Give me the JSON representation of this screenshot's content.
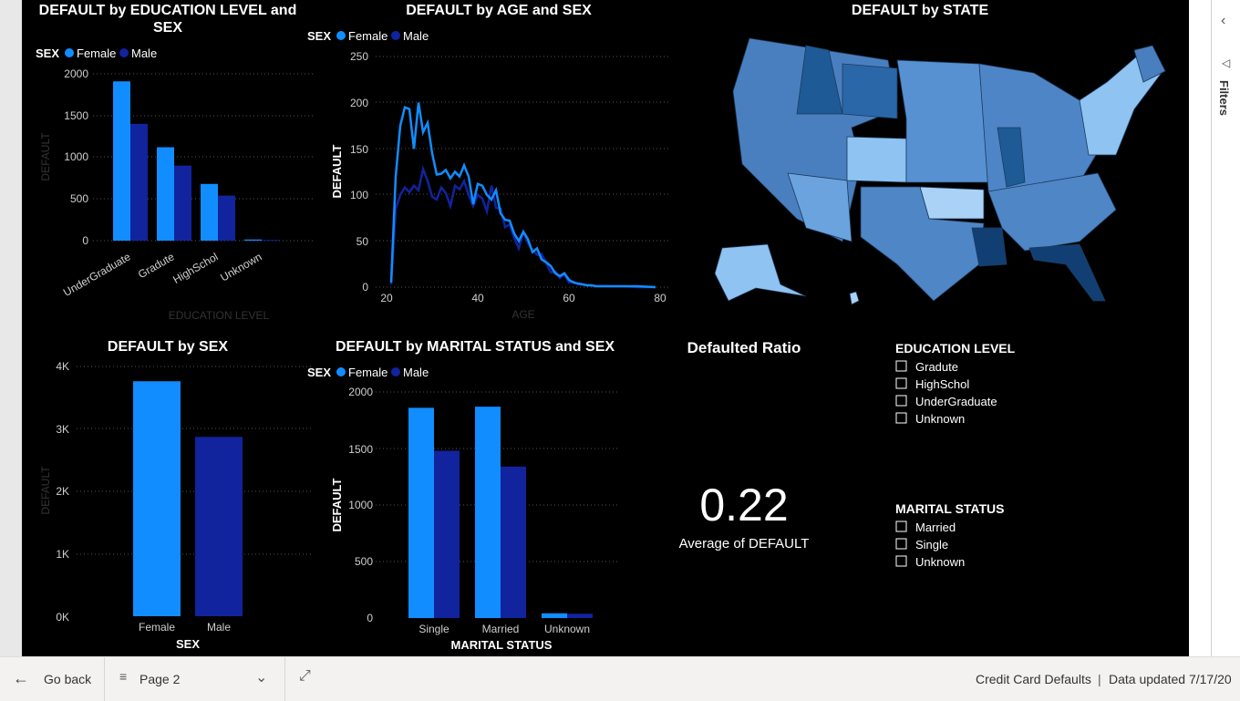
{
  "colors": {
    "female": "#118DFF",
    "male": "#12239E",
    "background": "#000000"
  },
  "visuals": {
    "edu": {
      "title_line1": "DEFAULT by EDUCATION LEVEL and",
      "title_line2": "SEX",
      "legend_title": "SEX",
      "legend_female": "Female",
      "legend_male": "Male",
      "xlabel": "EDUCATION LEVEL",
      "ylabel": "DEFAULT",
      "yticks": [
        "2000",
        "1500",
        "1000",
        "500",
        "0"
      ]
    },
    "age": {
      "title": "DEFAULT by AGE and SEX",
      "legend_title": "SEX",
      "legend_female": "Female",
      "legend_male": "Male",
      "xlabel": "AGE",
      "ylabel": "DEFAULT",
      "yticks": [
        "250",
        "200",
        "150",
        "100",
        "50",
        "0"
      ],
      "xticks": [
        "20",
        "40",
        "60",
        "80"
      ]
    },
    "state": {
      "title": "DEFAULT by STATE"
    },
    "sex": {
      "title": "DEFAULT by SEX",
      "xlabel": "SEX",
      "ylabel": "DEFAULT",
      "yticks": [
        "4K",
        "3K",
        "2K",
        "1K",
        "0K"
      ]
    },
    "marital": {
      "title": "DEFAULT by MARITAL STATUS and SEX",
      "legend_title": "SEX",
      "legend_female": "Female",
      "legend_male": "Male",
      "xlabel": "MARITAL STATUS",
      "ylabel": "DEFAULT",
      "yticks": [
        "2000",
        "1500",
        "1000",
        "500",
        "0"
      ]
    },
    "card": {
      "title": "Defaulted Ratio",
      "value": "0.22",
      "label": "Average of DEFAULT"
    },
    "slicer_edu": {
      "title": "EDUCATION LEVEL",
      "items": [
        "Gradute",
        "HighSchol",
        "UnderGraduate",
        "Unknown"
      ]
    },
    "slicer_marital": {
      "title": "MARITAL STATUS",
      "items": [
        "Married",
        "Single",
        "Unknown"
      ]
    }
  },
  "filters_pane": {
    "label": "Filters",
    "collapse_icon": "chevron-left-icon",
    "filter_icon": "funnel-icon"
  },
  "bottom_bar": {
    "back_label": "Go back",
    "page_label": "Page 2",
    "report_name": "Credit Card Defaults",
    "divider": "|",
    "updated": "Data updated 7/17/20"
  },
  "chart_data": [
    {
      "type": "bar",
      "title": "DEFAULT by EDUCATION LEVEL and SEX",
      "xlabel": "EDUCATION LEVEL",
      "ylabel": "DEFAULT",
      "ylim": [
        0,
        2000
      ],
      "categories": [
        "UnderGraduate",
        "Gradute",
        "HighSchol",
        "Unknown"
      ],
      "series": [
        {
          "name": "Female",
          "values": [
            1910,
            1120,
            680,
            14
          ]
        },
        {
          "name": "Male",
          "values": [
            1400,
            900,
            540,
            9
          ]
        }
      ]
    },
    {
      "type": "line",
      "title": "DEFAULT by AGE and SEX",
      "xlabel": "AGE",
      "ylabel": "DEFAULT",
      "ylim": [
        0,
        250
      ],
      "xlim": [
        20,
        80
      ],
      "x": [
        21,
        22,
        23,
        24,
        25,
        26,
        27,
        28,
        29,
        30,
        31,
        32,
        33,
        34,
        35,
        36,
        37,
        38,
        39,
        40,
        41,
        42,
        43,
        44,
        45,
        46,
        47,
        48,
        49,
        50,
        51,
        52,
        53,
        54,
        55,
        56,
        57,
        58,
        59,
        60,
        61,
        62,
        63,
        64,
        65,
        66,
        67,
        68,
        69,
        70,
        72,
        75,
        79
      ],
      "series": [
        {
          "name": "Female",
          "values": [
            5,
            120,
            175,
            195,
            193,
            150,
            200,
            168,
            178,
            145,
            122,
            123,
            127,
            118,
            125,
            120,
            132,
            120,
            90,
            112,
            110,
            100,
            95,
            105,
            80,
            73,
            72,
            58,
            50,
            60,
            52,
            38,
            42,
            30,
            27,
            23,
            15,
            12,
            15,
            8,
            5,
            4,
            3,
            2,
            2,
            1,
            1,
            1,
            1,
            1,
            1,
            1,
            0
          ]
        },
        {
          "name": "Male",
          "values": [
            3,
            85,
            100,
            108,
            103,
            110,
            105,
            128,
            115,
            98,
            95,
            108,
            102,
            88,
            110,
            106,
            115,
            100,
            88,
            100,
            96,
            82,
            110,
            86,
            85,
            65,
            68,
            53,
            42,
            60,
            48,
            40,
            35,
            36,
            26,
            16,
            17,
            10,
            14,
            5,
            6,
            3,
            3,
            2,
            2,
            1,
            1,
            1,
            1,
            1,
            1,
            0,
            0
          ]
        }
      ]
    },
    {
      "type": "bar",
      "title": "DEFAULT by SEX",
      "xlabel": "SEX",
      "ylabel": "DEFAULT",
      "ylim": [
        0,
        4000
      ],
      "categories": [
        "Female",
        "Male"
      ],
      "values": [
        3763,
        2873
      ]
    },
    {
      "type": "bar",
      "title": "DEFAULT by MARITAL STATUS and SEX",
      "xlabel": "MARITAL STATUS",
      "ylabel": "DEFAULT",
      "ylim": [
        0,
        2000
      ],
      "categories": [
        "Single",
        "Married",
        "Unknown"
      ],
      "series": [
        {
          "name": "Female",
          "values": [
            1860,
            1870,
            42
          ]
        },
        {
          "name": "Male",
          "values": [
            1480,
            1340,
            38
          ]
        }
      ]
    }
  ]
}
